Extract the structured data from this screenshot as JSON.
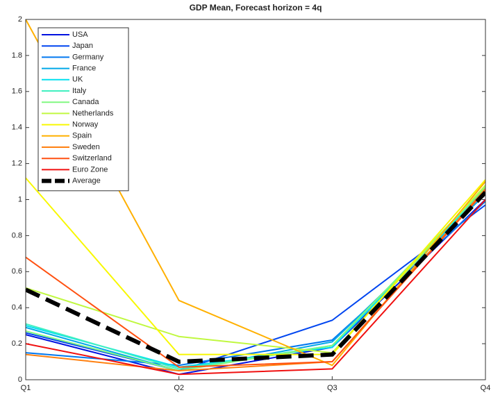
{
  "chart_data": {
    "type": "line",
    "title": "GDP Mean, Forecast horizon = 4q",
    "categories": [
      "Q1",
      "Q2",
      "Q3",
      "Q4"
    ],
    "ylim": [
      0,
      2
    ],
    "yticks": [
      0,
      0.2,
      0.4,
      0.6,
      0.8,
      1,
      1.2,
      1.4,
      1.6,
      1.8,
      2
    ],
    "grid": false,
    "legend": "northwest",
    "series": [
      {
        "name": "USA",
        "color": "#0010e0",
        "values": [
          0.25,
          0.03,
          0.18,
          1.0
        ]
      },
      {
        "name": "Japan",
        "color": "#0045f0",
        "values": [
          0.26,
          0.05,
          0.33,
          0.97
        ]
      },
      {
        "name": "Germany",
        "color": "#0078f0",
        "values": [
          0.15,
          0.08,
          0.22,
          0.99
        ]
      },
      {
        "name": "France",
        "color": "#00a8e8",
        "values": [
          0.29,
          0.05,
          0.21,
          1.03
        ]
      },
      {
        "name": "UK",
        "color": "#00e0f0",
        "values": [
          0.3,
          0.07,
          0.18,
          1.05
        ]
      },
      {
        "name": "Italy",
        "color": "#40f0c0",
        "values": [
          0.31,
          0.06,
          0.19,
          1.06
        ]
      },
      {
        "name": "Canada",
        "color": "#80f880",
        "values": [
          0.27,
          0.05,
          0.19,
          1.07
        ]
      },
      {
        "name": "Netherlands",
        "color": "#c0f840",
        "values": [
          0.51,
          0.24,
          0.15,
          1.08
        ]
      },
      {
        "name": "Norway",
        "color": "#f8f800",
        "values": [
          1.12,
          0.14,
          0.14,
          1.11
        ]
      },
      {
        "name": "Spain",
        "color": "#ffb000",
        "values": [
          2.0,
          0.44,
          0.08,
          1.1
        ]
      },
      {
        "name": "Sweden",
        "color": "#ff8010",
        "values": [
          0.14,
          0.05,
          0.1,
          1.06
        ]
      },
      {
        "name": "Switzerland",
        "color": "#ff5010",
        "values": [
          0.68,
          0.07,
          0.1,
          1.05
        ]
      },
      {
        "name": "Euro Zone",
        "color": "#f01010",
        "values": [
          0.2,
          0.03,
          0.06,
          1.0
        ]
      },
      {
        "name": "Average",
        "color": "#000000",
        "dashed": true,
        "values": [
          0.5,
          0.1,
          0.14,
          1.04
        ]
      }
    ]
  }
}
